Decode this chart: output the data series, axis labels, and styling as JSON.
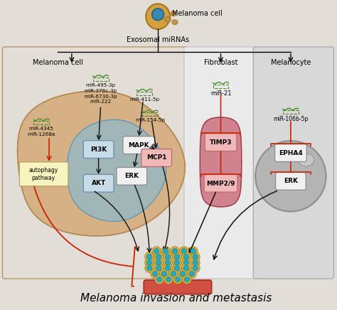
{
  "title": "Melanoma invasion and metastasis",
  "title_fontsize": 11,
  "bg_left": "#e2ddd6",
  "bg_mid": "#eaeaea",
  "bg_right": "#d8d8d8",
  "cell_color": "#d4aa78",
  "cell_edge": "#b08850",
  "blue_color": "#90b8c8",
  "blue_edge": "#6090a8",
  "fibroblast_color": "#c86070",
  "fibroblast_edge": "#a04050",
  "melanocyte_color": "#b0b0b0",
  "melanocyte_edge": "#888888",
  "box_blue": "#c8dce8",
  "box_blue_edge": "#7090b0",
  "box_white": "#f0f0f0",
  "box_white_edge": "#909090",
  "box_pink": "#f0b8b8",
  "box_pink_edge": "#c07070",
  "box_yellow": "#f8f4c0",
  "box_yellow_edge": "#b0a060",
  "mir_color": "#4a8a2a",
  "arrow_black": "#111111",
  "arrow_red": "#cc2200",
  "top_cell_color": "#d4a040",
  "top_cell_edge": "#a07820",
  "top_nuc_color": "#3a8ab0",
  "top_nuc_edge": "#1a5a80",
  "exo_color": "#c89040",
  "exo_edge": "#907020",
  "vessel_color": "#d04030",
  "cell_outer": "#d8b040",
  "cell_inner": "#28a8b8",
  "labels": {
    "melanoma_cell_top": "Melanoma cell",
    "exosomal": "Exosomal miRNAs",
    "left_cell": "Melanoma cell",
    "fibroblast": "Fibroblast",
    "melanocyte": "Melanocyte",
    "PI3K": "PI3K",
    "AKT": "AKT",
    "MAPK": "MAPK",
    "ERK": "ERK",
    "MCP1": "MCP1",
    "autophagy": "autophagy\npathway",
    "mir_495": "miR-495-3p",
    "mir_376": "miR-376c-3p",
    "mir_6730": "miR-6730-3p",
    "mir_222": "miR-222",
    "mir_411": "miR-411-5p",
    "mir_154": "miR-154-5p",
    "mir_4345": "miR-4345",
    "mir_1268": "miR-1268a",
    "mir_21": "miR-21",
    "TIMP3": "TIMP3",
    "MMP29": "MMP2/9",
    "mir_106": "miR-106b-5p",
    "EPHA4": "EPHA4",
    "ERK2": "ERK"
  }
}
